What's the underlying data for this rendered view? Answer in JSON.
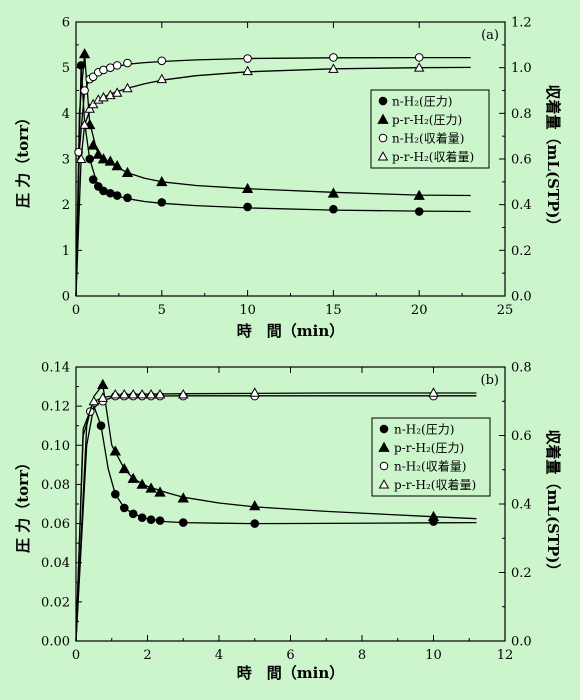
{
  "colors": {
    "background": "#ccf5cc",
    "ink": "#000000",
    "open_fill": "#ffffff"
  },
  "chart_data": [
    {
      "type": "line",
      "panel_label": "(a)",
      "xlabel": "時　間（min）",
      "ylabel_left": "圧 力（torr）",
      "ylabel_right": "収着量（mL(STP)）",
      "xlim": [
        0,
        25
      ],
      "ylim_left": [
        0,
        6
      ],
      "ylim_right": [
        0,
        1.2
      ],
      "x_ticks": [
        0,
        5,
        10,
        15,
        20,
        25
      ],
      "x_tick_labels": [
        "0",
        "5",
        "10",
        "15",
        "20",
        "25"
      ],
      "y_left_ticks": [
        0,
        1,
        2,
        3,
        4,
        5,
        6
      ],
      "y_left_tick_labels": [
        "0",
        "1",
        "2",
        "3",
        "4",
        "5",
        "6"
      ],
      "y_right_ticks": [
        0,
        0.2,
        0.4,
        0.6,
        0.8,
        1.0,
        1.2
      ],
      "y_right_tick_labels": [
        "0.0",
        "0.2",
        "0.4",
        "0.6",
        "0.8",
        "1.0",
        "1.2"
      ],
      "legend_position": "middle-right",
      "series": [
        {
          "name": "n-H₂(圧力)",
          "axis": "left",
          "marker": "filled-circle",
          "x": [
            0.3,
            0.8,
            1.0,
            1.3,
            1.6,
            2.0,
            2.4,
            3.0,
            5.0,
            10.0,
            15.0,
            20.0
          ],
          "y": [
            5.05,
            3.0,
            2.55,
            2.4,
            2.3,
            2.25,
            2.2,
            2.15,
            2.05,
            1.95,
            1.9,
            1.85
          ],
          "curve_x": [
            0,
            0.3,
            0.5,
            0.8,
            1.2,
            1.6,
            2.0,
            2.5,
            3.0,
            4.0,
            5.0,
            7.0,
            10.0,
            15.0,
            20.0,
            23.0
          ],
          "curve_y": [
            0,
            5.05,
            3.8,
            3.0,
            2.5,
            2.32,
            2.24,
            2.18,
            2.13,
            2.07,
            2.03,
            1.98,
            1.93,
            1.88,
            1.86,
            1.85
          ]
        },
        {
          "name": "p-r-H₂(圧力)",
          "axis": "left",
          "marker": "filled-triangle",
          "x": [
            0.5,
            0.8,
            1.0,
            1.3,
            1.6,
            2.0,
            2.4,
            3.0,
            5.0,
            10.0,
            15.0,
            20.0
          ],
          "y": [
            5.3,
            3.75,
            3.3,
            3.1,
            3.0,
            2.95,
            2.85,
            2.7,
            2.5,
            2.35,
            2.25,
            2.2
          ],
          "curve_x": [
            0,
            0.2,
            0.5,
            0.8,
            1.2,
            1.6,
            2.0,
            2.5,
            3.0,
            4.0,
            5.0,
            7.0,
            10.0,
            15.0,
            20.0,
            23.0
          ],
          "curve_y": [
            0,
            4.0,
            5.3,
            3.8,
            3.2,
            3.0,
            2.9,
            2.8,
            2.7,
            2.58,
            2.5,
            2.42,
            2.35,
            2.27,
            2.21,
            2.2
          ]
        },
        {
          "name": "n-H₂(収着量)",
          "axis": "right",
          "marker": "open-circle",
          "x": [
            0.15,
            0.5,
            0.8,
            1.0,
            1.3,
            1.6,
            2.0,
            2.4,
            3.0,
            5.0,
            10.0,
            15.0,
            20.0
          ],
          "y": [
            0.63,
            0.9,
            0.95,
            0.96,
            0.98,
            0.99,
            1.0,
            1.01,
            1.02,
            1.03,
            1.04,
            1.045,
            1.045
          ],
          "curve_x": [
            0,
            0.2,
            0.5,
            0.8,
            1.2,
            1.6,
            2.0,
            3.0,
            4.0,
            5.0,
            7.0,
            10.0,
            15.0,
            20.0,
            23.0
          ],
          "curve_y": [
            0,
            0.64,
            0.9,
            0.95,
            0.975,
            0.99,
            1.0,
            1.015,
            1.022,
            1.027,
            1.034,
            1.04,
            1.043,
            1.044,
            1.044
          ]
        },
        {
          "name": "p-r-H₂(収着量)",
          "axis": "right",
          "marker": "open-triangle",
          "x": [
            0.3,
            0.5,
            0.8,
            1.0,
            1.3,
            1.6,
            2.0,
            2.4,
            3.0,
            5.0,
            10.0,
            15.0,
            20.0
          ],
          "y": [
            0.6,
            0.75,
            0.82,
            0.84,
            0.86,
            0.87,
            0.88,
            0.89,
            0.91,
            0.95,
            0.985,
            0.995,
            1.0
          ],
          "curve_x": [
            0,
            0.3,
            0.5,
            0.8,
            1.2,
            1.6,
            2.0,
            3.0,
            4.0,
            5.0,
            7.0,
            10.0,
            15.0,
            20.0,
            23.0
          ],
          "curve_y": [
            0,
            0.6,
            0.75,
            0.81,
            0.85,
            0.87,
            0.885,
            0.91,
            0.93,
            0.945,
            0.965,
            0.982,
            0.995,
            1.0,
            1.001
          ]
        }
      ]
    },
    {
      "type": "line",
      "panel_label": "(b)",
      "xlabel": "時　間（min）",
      "ylabel_left": "圧 力（torr）",
      "ylabel_right": "収着量（mL(STP)）",
      "xlim": [
        0,
        12
      ],
      "ylim_left": [
        0,
        0.14
      ],
      "ylim_right": [
        0,
        0.8
      ],
      "x_ticks": [
        0,
        2,
        4,
        6,
        8,
        10,
        12
      ],
      "x_tick_labels": [
        "0",
        "2",
        "4",
        "6",
        "8",
        "10",
        "12"
      ],
      "y_left_ticks": [
        0,
        0.02,
        0.04,
        0.06,
        0.08,
        0.1,
        0.12,
        0.14
      ],
      "y_left_tick_labels": [
        "0.00",
        "0.02",
        "0.04",
        "0.06",
        "0.08",
        "0.10",
        "0.12",
        "0.14"
      ],
      "y_right_ticks": [
        0,
        0.2,
        0.4,
        0.6,
        0.8
      ],
      "y_right_tick_labels": [
        "0.0",
        "0.2",
        "0.4",
        "0.6",
        "0.8"
      ],
      "legend_position": "middle-right",
      "series": [
        {
          "name": "n-H₂(圧力)",
          "axis": "left",
          "marker": "filled-circle",
          "x": [
            0.7,
            1.1,
            1.35,
            1.6,
            1.85,
            2.1,
            2.35,
            3.0,
            5.0,
            10.0
          ],
          "y": [
            0.11,
            0.075,
            0.068,
            0.065,
            0.063,
            0.062,
            0.0615,
            0.0605,
            0.06,
            0.061
          ],
          "curve_x": [
            0,
            0.3,
            0.5,
            0.7,
            0.9,
            1.1,
            1.35,
            1.6,
            2.0,
            2.5,
            3.0,
            4.0,
            5.0,
            7.0,
            10.0,
            11.2
          ],
          "curve_y": [
            0,
            0.1,
            0.12,
            0.11,
            0.088,
            0.075,
            0.068,
            0.065,
            0.0625,
            0.061,
            0.0605,
            0.0602,
            0.06,
            0.0601,
            0.0604,
            0.0605
          ]
        },
        {
          "name": "p-r-H₂(圧力)",
          "axis": "left",
          "marker": "filled-triangle",
          "x": [
            0.75,
            1.1,
            1.35,
            1.6,
            1.85,
            2.1,
            2.35,
            3.0,
            5.0,
            10.0
          ],
          "y": [
            0.131,
            0.097,
            0.088,
            0.083,
            0.08,
            0.078,
            0.076,
            0.073,
            0.069,
            0.0635
          ],
          "curve_x": [
            0,
            0.3,
            0.5,
            0.75,
            1.0,
            1.35,
            1.6,
            2.0,
            2.5,
            3.0,
            4.0,
            5.0,
            7.0,
            10.0,
            11.2
          ],
          "curve_y": [
            0,
            0.11,
            0.125,
            0.131,
            0.1,
            0.088,
            0.083,
            0.079,
            0.076,
            0.0735,
            0.0705,
            0.0685,
            0.0662,
            0.0635,
            0.0625
          ]
        },
        {
          "name": "n-H₂(収着量)",
          "axis": "right",
          "marker": "open-circle",
          "x": [
            0.4,
            0.75,
            1.1,
            1.35,
            1.6,
            1.85,
            2.1,
            2.35,
            3.0,
            5.0,
            10.0
          ],
          "y": [
            0.67,
            0.7,
            0.715,
            0.715,
            0.715,
            0.715,
            0.715,
            0.715,
            0.715,
            0.715,
            0.715
          ],
          "curve_x": [
            0,
            0.2,
            0.4,
            0.7,
            1.0,
            1.5,
            2.0,
            3.0,
            5.0,
            7.0,
            10.0,
            11.2
          ],
          "curve_y": [
            0,
            0.6,
            0.67,
            0.7,
            0.71,
            0.714,
            0.715,
            0.716,
            0.716,
            0.716,
            0.716,
            0.716
          ]
        },
        {
          "name": "p-r-H₂(収着量)",
          "axis": "right",
          "marker": "open-triangle",
          "x": [
            0.5,
            0.75,
            1.1,
            1.35,
            1.6,
            1.85,
            2.1,
            2.35,
            3.0,
            5.0,
            10.0
          ],
          "y": [
            0.7,
            0.71,
            0.72,
            0.72,
            0.72,
            0.72,
            0.72,
            0.72,
            0.72,
            0.725,
            0.725
          ],
          "curve_x": [
            0,
            0.2,
            0.5,
            0.8,
            1.2,
            1.6,
            2.0,
            3.0,
            5.0,
            7.0,
            10.0,
            11.2
          ],
          "curve_y": [
            0,
            0.62,
            0.7,
            0.712,
            0.718,
            0.72,
            0.721,
            0.722,
            0.723,
            0.724,
            0.724,
            0.724
          ]
        }
      ]
    }
  ]
}
